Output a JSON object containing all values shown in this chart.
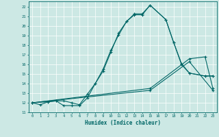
{
  "xlabel": "Humidex (Indice chaleur)",
  "bg_color": "#cce8e4",
  "line_color": "#006666",
  "grid_color": "#ffffff",
  "xlim": [
    -0.5,
    23.5
  ],
  "ylim": [
    11,
    22.6
  ],
  "series": [
    {
      "x": [
        0,
        1,
        2,
        3,
        4,
        5,
        6,
        7,
        8,
        9,
        10,
        11,
        12,
        13,
        14,
        15,
        17,
        18,
        19,
        20,
        22,
        23
      ],
      "y": [
        12,
        11.8,
        12.1,
        12.2,
        11.7,
        11.7,
        11.7,
        12.5,
        14.0,
        15.3,
        17.3,
        19.3,
        20.5,
        21.3,
        21.3,
        22.2,
        20.7,
        18.3,
        16.0,
        15.1,
        14.8,
        14.8
      ]
    },
    {
      "x": [
        0,
        2,
        3,
        4,
        5,
        6,
        7,
        8,
        9,
        10,
        11,
        12,
        13,
        14,
        15,
        17,
        18,
        19,
        20,
        22,
        23
      ],
      "y": [
        12,
        12.1,
        12.2,
        12.2,
        12.0,
        11.8,
        12.9,
        14.0,
        15.5,
        17.5,
        19.1,
        20.5,
        21.2,
        21.2,
        22.2,
        20.7,
        18.3,
        16.1,
        15.1,
        14.8,
        14.8
      ]
    },
    {
      "x": [
        0,
        15,
        20,
        22,
        23
      ],
      "y": [
        12,
        13.5,
        16.6,
        16.8,
        13.5
      ]
    },
    {
      "x": [
        0,
        15,
        20,
        23
      ],
      "y": [
        12,
        13.3,
        16.3,
        13.3
      ]
    }
  ]
}
